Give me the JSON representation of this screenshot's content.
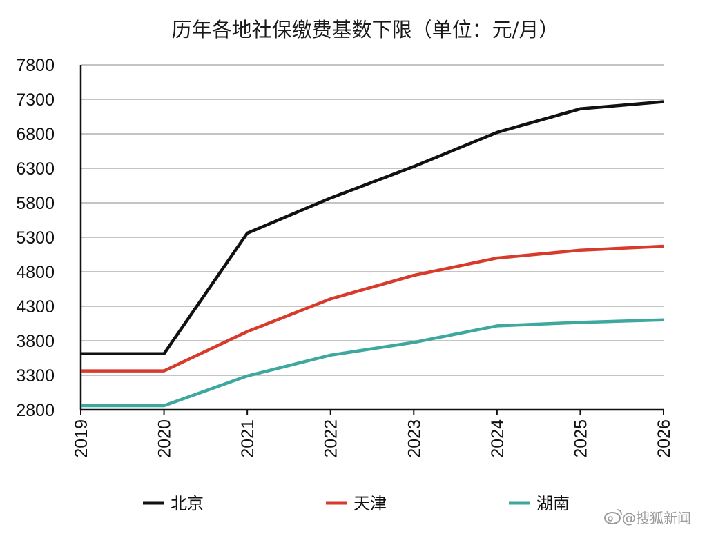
{
  "chart_data": {
    "type": "line",
    "title": "历年各地社保缴费基数下限（单位：元/月）",
    "xlabel": "",
    "ylabel": "",
    "x": [
      "2019",
      "2020",
      "2021",
      "2022",
      "2023",
      "2024",
      "2025",
      "2026"
    ],
    "ylim": [
      2800,
      7800
    ],
    "yticks": [
      2800,
      3300,
      3800,
      4300,
      4800,
      5300,
      5800,
      6300,
      6800,
      7300,
      7800
    ],
    "grid": "horizontal",
    "legend_position": "bottom",
    "series": [
      {
        "name": "北京",
        "color": "#111111",
        "values": [
          3613,
          3613,
          5360,
          5869,
          6326,
          6821,
          7162,
          7265
        ]
      },
      {
        "name": "天津",
        "color": "#d63b2c",
        "values": [
          3364,
          3364,
          3933,
          4407,
          4748,
          4999,
          5113,
          5170
        ]
      },
      {
        "name": "湖南",
        "color": "#3ea89e",
        "values": [
          2860,
          2860,
          3290,
          3592,
          3776,
          4016,
          4066,
          4103
        ]
      }
    ]
  },
  "watermark": "@搜狐新闻"
}
